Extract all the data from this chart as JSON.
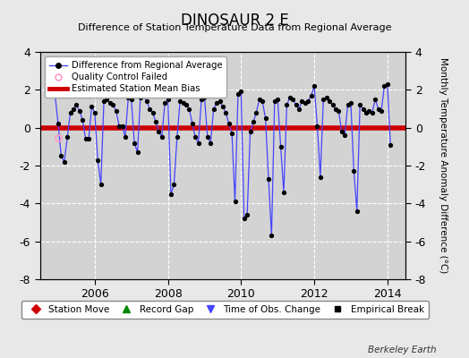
{
  "title": "DINOSAUR 2 E",
  "subtitle": "Difference of Station Temperature Data from Regional Average",
  "ylabel": "Monthly Temperature Anomaly Difference (°C)",
  "bias_value": 0.0,
  "ylim": [
    -8,
    4
  ],
  "xlim": [
    2004.5,
    2014.5
  ],
  "background_color": "#e8e8e8",
  "plot_bg_color": "#d3d3d3",
  "grid_color": "#ffffff",
  "line_color": "#4444ff",
  "marker_color": "#000000",
  "bias_color": "#cc0000",
  "qc_fail_x": 2005.0,
  "qc_fail_y": -0.55,
  "xticks": [
    2006,
    2008,
    2010,
    2012,
    2014
  ],
  "yticks": [
    4,
    2,
    0,
    -2,
    -4,
    -6,
    -8
  ],
  "time_series": [
    [
      2004.917,
      1.7
    ],
    [
      2005.0,
      0.2
    ],
    [
      2005.083,
      -1.5
    ],
    [
      2005.167,
      -1.8
    ],
    [
      2005.25,
      -0.5
    ],
    [
      2005.333,
      0.8
    ],
    [
      2005.417,
      1.0
    ],
    [
      2005.5,
      1.2
    ],
    [
      2005.583,
      0.9
    ],
    [
      2005.667,
      0.4
    ],
    [
      2005.75,
      -0.6
    ],
    [
      2005.833,
      -0.6
    ],
    [
      2005.917,
      1.1
    ],
    [
      2006.0,
      0.8
    ],
    [
      2006.083,
      -1.7
    ],
    [
      2006.167,
      -3.0
    ],
    [
      2006.25,
      1.4
    ],
    [
      2006.333,
      1.5
    ],
    [
      2006.417,
      1.3
    ],
    [
      2006.5,
      1.2
    ],
    [
      2006.583,
      0.9
    ],
    [
      2006.667,
      0.1
    ],
    [
      2006.75,
      0.1
    ],
    [
      2006.833,
      -0.5
    ],
    [
      2006.917,
      1.6
    ],
    [
      2007.0,
      1.5
    ],
    [
      2007.083,
      -0.8
    ],
    [
      2007.167,
      -1.3
    ],
    [
      2007.25,
      1.6
    ],
    [
      2007.333,
      1.7
    ],
    [
      2007.417,
      1.4
    ],
    [
      2007.5,
      1.0
    ],
    [
      2007.583,
      0.8
    ],
    [
      2007.667,
      0.3
    ],
    [
      2007.75,
      -0.2
    ],
    [
      2007.833,
      -0.5
    ],
    [
      2007.917,
      1.3
    ],
    [
      2008.0,
      1.5
    ],
    [
      2008.083,
      -3.5
    ],
    [
      2008.167,
      -3.0
    ],
    [
      2008.25,
      -0.5
    ],
    [
      2008.333,
      1.4
    ],
    [
      2008.417,
      1.3
    ],
    [
      2008.5,
      1.2
    ],
    [
      2008.583,
      1.0
    ],
    [
      2008.667,
      0.2
    ],
    [
      2008.75,
      -0.5
    ],
    [
      2008.833,
      -0.8
    ],
    [
      2008.917,
      1.5
    ],
    [
      2009.0,
      1.6
    ],
    [
      2009.083,
      -0.5
    ],
    [
      2009.167,
      -0.8
    ],
    [
      2009.25,
      1.0
    ],
    [
      2009.333,
      1.3
    ],
    [
      2009.417,
      1.4
    ],
    [
      2009.5,
      1.1
    ],
    [
      2009.583,
      0.8
    ],
    [
      2009.667,
      0.2
    ],
    [
      2009.75,
      -0.3
    ],
    [
      2009.833,
      -3.9
    ],
    [
      2009.917,
      1.8
    ],
    [
      2010.0,
      1.9
    ],
    [
      2010.083,
      -4.8
    ],
    [
      2010.167,
      -4.6
    ],
    [
      2010.25,
      -0.2
    ],
    [
      2010.333,
      0.3
    ],
    [
      2010.417,
      0.8
    ],
    [
      2010.5,
      1.5
    ],
    [
      2010.583,
      1.4
    ],
    [
      2010.667,
      0.5
    ],
    [
      2010.75,
      -2.7
    ],
    [
      2010.833,
      -5.7
    ],
    [
      2010.917,
      1.4
    ],
    [
      2011.0,
      1.5
    ],
    [
      2011.083,
      -1.0
    ],
    [
      2011.167,
      -3.4
    ],
    [
      2011.25,
      1.2
    ],
    [
      2011.333,
      1.6
    ],
    [
      2011.417,
      1.5
    ],
    [
      2011.5,
      1.2
    ],
    [
      2011.583,
      1.0
    ],
    [
      2011.667,
      1.4
    ],
    [
      2011.75,
      1.3
    ],
    [
      2011.833,
      1.4
    ],
    [
      2011.917,
      1.7
    ],
    [
      2012.0,
      2.2
    ],
    [
      2012.083,
      0.1
    ],
    [
      2012.167,
      -2.6
    ],
    [
      2012.25,
      1.5
    ],
    [
      2012.333,
      1.6
    ],
    [
      2012.417,
      1.4
    ],
    [
      2012.5,
      1.2
    ],
    [
      2012.583,
      1.0
    ],
    [
      2012.667,
      0.9
    ],
    [
      2012.75,
      -0.2
    ],
    [
      2012.833,
      -0.4
    ],
    [
      2012.917,
      1.2
    ],
    [
      2013.0,
      1.3
    ],
    [
      2013.083,
      -2.3
    ],
    [
      2013.167,
      -4.4
    ],
    [
      2013.25,
      1.2
    ],
    [
      2013.333,
      1.0
    ],
    [
      2013.417,
      0.8
    ],
    [
      2013.5,
      0.9
    ],
    [
      2013.583,
      0.8
    ],
    [
      2013.667,
      1.5
    ],
    [
      2013.75,
      1.0
    ],
    [
      2013.833,
      0.9
    ],
    [
      2013.917,
      2.2
    ],
    [
      2014.0,
      2.3
    ],
    [
      2014.083,
      -0.9
    ]
  ],
  "berkeley_earth_text": "Berkeley Earth",
  "legend2_items": [
    {
      "label": "Station Move",
      "color": "#cc0000",
      "marker": "D"
    },
    {
      "label": "Record Gap",
      "color": "#008800",
      "marker": "^"
    },
    {
      "label": "Time of Obs. Change",
      "color": "#4444ff",
      "marker": "v"
    },
    {
      "label": "Empirical Break",
      "color": "#000000",
      "marker": "s"
    }
  ]
}
